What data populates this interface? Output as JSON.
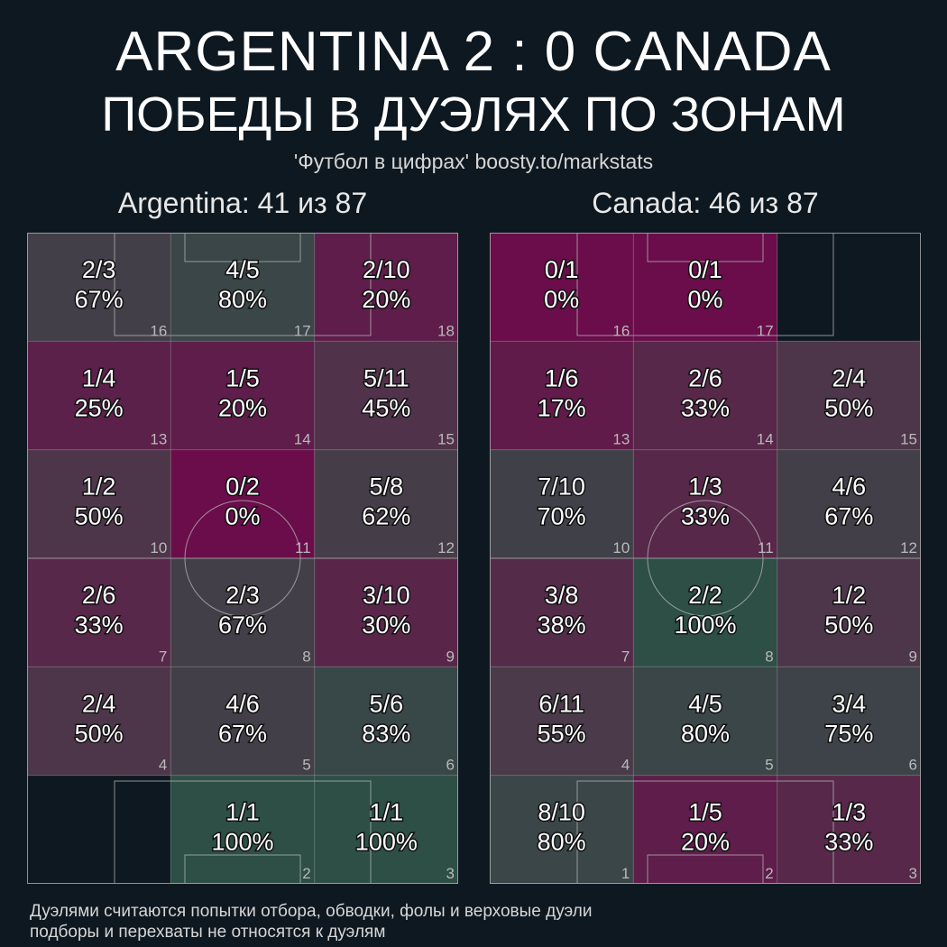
{
  "header": {
    "title": "ARGENTINA 2 : 0 CANADA",
    "subtitle": "ПОБЕДЫ В ДУЭЛЯХ ПО ЗОНАМ",
    "source": "'Футбол в цифрах' boosty.to/markstats"
  },
  "footnote": {
    "line1": "Дуэлями считаются попытки отбора, обводки, фолы и верховые дуэли",
    "line2": "подборы и перехваты не относятся к дуэлям"
  },
  "colors": {
    "background": "#0e1820",
    "low": "#6a0d4a",
    "mid": "#4a3a4a",
    "high": "#2d4f45"
  },
  "chart_data": [
    {
      "type": "heatmap",
      "team": "Argentina",
      "title": "Argentina: 41 из 87",
      "won": 41,
      "total": 87,
      "grid": "6 rows x 3 columns, zone 18 top-right, zone 1 bottom-left",
      "zones": [
        {
          "zone": 16,
          "label": "2/3",
          "pct": "67%",
          "won": 2,
          "total": 3
        },
        {
          "zone": 17,
          "label": "4/5",
          "pct": "80%",
          "won": 4,
          "total": 5
        },
        {
          "zone": 18,
          "label": "2/10",
          "pct": "20%",
          "won": 2,
          "total": 10
        },
        {
          "zone": 13,
          "label": "1/4",
          "pct": "25%",
          "won": 1,
          "total": 4
        },
        {
          "zone": 14,
          "label": "1/5",
          "pct": "20%",
          "won": 1,
          "total": 5
        },
        {
          "zone": 15,
          "label": "5/11",
          "pct": "45%",
          "won": 5,
          "total": 11
        },
        {
          "zone": 10,
          "label": "1/2",
          "pct": "50%",
          "won": 1,
          "total": 2
        },
        {
          "zone": 11,
          "label": "0/2",
          "pct": "0%",
          "won": 0,
          "total": 2
        },
        {
          "zone": 12,
          "label": "5/8",
          "pct": "62%",
          "won": 5,
          "total": 8
        },
        {
          "zone": 7,
          "label": "2/6",
          "pct": "33%",
          "won": 2,
          "total": 6
        },
        {
          "zone": 8,
          "label": "2/3",
          "pct": "67%",
          "won": 2,
          "total": 3
        },
        {
          "zone": 9,
          "label": "3/10",
          "pct": "30%",
          "won": 3,
          "total": 10
        },
        {
          "zone": 4,
          "label": "2/4",
          "pct": "50%",
          "won": 2,
          "total": 4
        },
        {
          "zone": 5,
          "label": "4/6",
          "pct": "67%",
          "won": 4,
          "total": 6
        },
        {
          "zone": 6,
          "label": "5/6",
          "pct": "83%",
          "won": 5,
          "total": 6
        },
        {
          "zone": 1,
          "label": "",
          "pct": "",
          "won": null,
          "total": 0
        },
        {
          "zone": 2,
          "label": "1/1",
          "pct": "100%",
          "won": 1,
          "total": 1
        },
        {
          "zone": 3,
          "label": "1/1",
          "pct": "100%",
          "won": 1,
          "total": 1
        }
      ]
    },
    {
      "type": "heatmap",
      "team": "Canada",
      "title": "Canada: 46 из 87",
      "won": 46,
      "total": 87,
      "grid": "6 rows x 3 columns, zone 18 top-right, zone 1 bottom-left",
      "zones": [
        {
          "zone": 16,
          "label": "0/1",
          "pct": "0%",
          "won": 0,
          "total": 1
        },
        {
          "zone": 17,
          "label": "0/1",
          "pct": "0%",
          "won": 0,
          "total": 1
        },
        {
          "zone": 18,
          "label": "",
          "pct": "",
          "won": null,
          "total": 0
        },
        {
          "zone": 13,
          "label": "1/6",
          "pct": "17%",
          "won": 1,
          "total": 6
        },
        {
          "zone": 14,
          "label": "2/6",
          "pct": "33%",
          "won": 2,
          "total": 6
        },
        {
          "zone": 15,
          "label": "2/4",
          "pct": "50%",
          "won": 2,
          "total": 4
        },
        {
          "zone": 10,
          "label": "7/10",
          "pct": "70%",
          "won": 7,
          "total": 10
        },
        {
          "zone": 11,
          "label": "1/3",
          "pct": "33%",
          "won": 1,
          "total": 3
        },
        {
          "zone": 12,
          "label": "4/6",
          "pct": "67%",
          "won": 4,
          "total": 6
        },
        {
          "zone": 7,
          "label": "3/8",
          "pct": "38%",
          "won": 3,
          "total": 8
        },
        {
          "zone": 8,
          "label": "2/2",
          "pct": "100%",
          "won": 2,
          "total": 2
        },
        {
          "zone": 9,
          "label": "1/2",
          "pct": "50%",
          "won": 1,
          "total": 2
        },
        {
          "zone": 4,
          "label": "6/11",
          "pct": "55%",
          "won": 6,
          "total": 11
        },
        {
          "zone": 5,
          "label": "4/5",
          "pct": "80%",
          "won": 4,
          "total": 5
        },
        {
          "zone": 6,
          "label": "3/4",
          "pct": "75%",
          "won": 3,
          "total": 4
        },
        {
          "zone": 1,
          "label": "8/10",
          "pct": "80%",
          "won": 8,
          "total": 10
        },
        {
          "zone": 2,
          "label": "1/5",
          "pct": "20%",
          "won": 1,
          "total": 5
        },
        {
          "zone": 3,
          "label": "1/3",
          "pct": "33%",
          "won": 1,
          "total": 3
        }
      ]
    }
  ]
}
